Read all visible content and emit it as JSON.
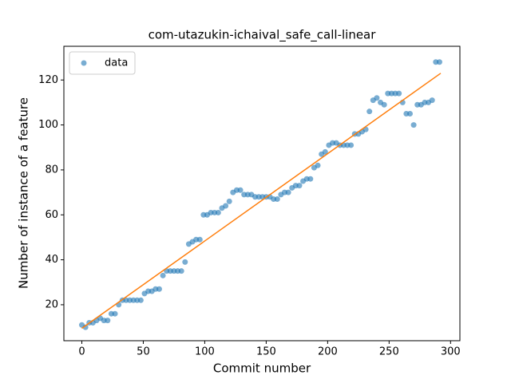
{
  "chart_data": {
    "type": "scatter",
    "title": "com-utazukin-ichaival_safe_call-linear",
    "xlabel": "Commit number",
    "ylabel": "Number of instance of a feature",
    "xlim": [
      -14.6,
      307.6
    ],
    "ylim": [
      4,
      135
    ],
    "xticks": [
      0,
      50,
      100,
      150,
      200,
      250,
      300
    ],
    "yticks": [
      20,
      40,
      60,
      80,
      100,
      120
    ],
    "legend": "upper left",
    "series": [
      {
        "name": "data",
        "color": "#1f77b4",
        "kind": "scatter",
        "x": [
          0,
          3,
          6,
          9,
          12,
          15,
          18,
          21,
          24,
          27,
          30,
          33,
          36,
          39,
          42,
          45,
          48,
          51,
          54,
          57,
          60,
          63,
          66,
          69,
          72,
          75,
          78,
          81,
          84,
          87,
          90,
          93,
          96,
          99,
          102,
          105,
          108,
          111,
          114,
          117,
          120,
          123,
          126,
          129,
          132,
          135,
          138,
          141,
          144,
          147,
          150,
          153,
          156,
          159,
          162,
          165,
          168,
          171,
          174,
          177,
          180,
          183,
          186,
          189,
          192,
          195,
          198,
          201,
          204,
          207,
          210,
          213,
          216,
          219,
          222,
          225,
          228,
          231,
          234,
          237,
          240,
          243,
          246,
          249,
          252,
          255,
          258,
          261,
          264,
          267,
          270,
          273,
          276,
          279,
          282,
          285,
          288,
          291
        ],
        "values": [
          11,
          10,
          12,
          12,
          13,
          14,
          13,
          13,
          16,
          16,
          20,
          22,
          22,
          22,
          22,
          22,
          22,
          25,
          26,
          26,
          27,
          27,
          33,
          35,
          35,
          35,
          35,
          35,
          39,
          47,
          48,
          49,
          49,
          60,
          60,
          61,
          61,
          61,
          63,
          64,
          66,
          70,
          71,
          71,
          69,
          69,
          69,
          68,
          68,
          68,
          68,
          68,
          67,
          67,
          69,
          70,
          70,
          72,
          73,
          73,
          75,
          76,
          76,
          81,
          82,
          87,
          88,
          91,
          92,
          92,
          91,
          91,
          91,
          91,
          96,
          96,
          97,
          98,
          106,
          111,
          112,
          110,
          109,
          114,
          114,
          114,
          114,
          110,
          105,
          105,
          100,
          109,
          109,
          110,
          110,
          111,
          128,
          128
        ]
      },
      {
        "color": "#ff7f0e",
        "kind": "line",
        "x": [
          0,
          292
        ],
        "values": [
          9.5,
          123
        ]
      }
    ]
  }
}
